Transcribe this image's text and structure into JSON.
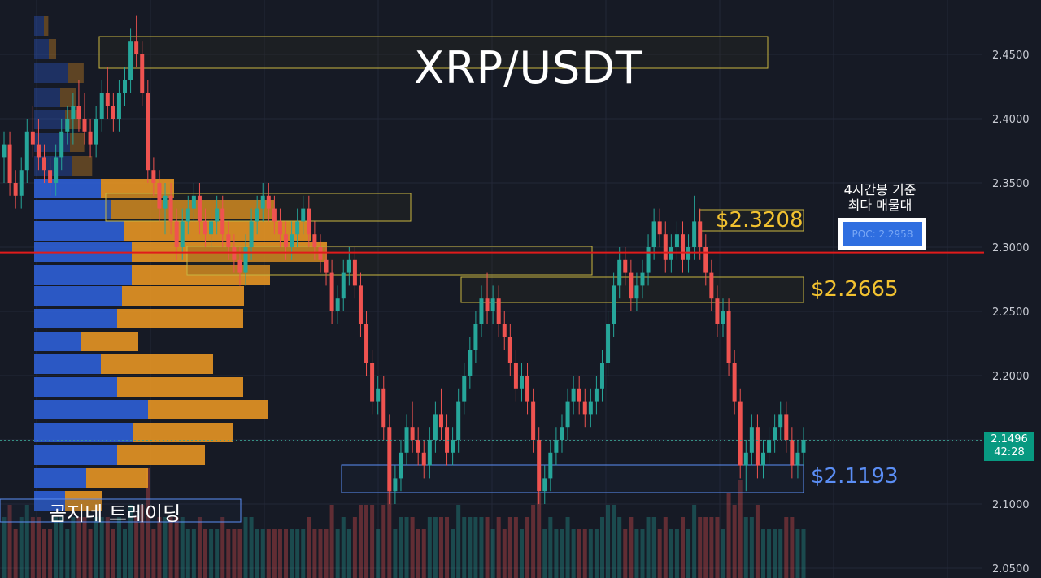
{
  "title": "XRP/USDT",
  "brand": "곰지네 트레이딩",
  "levels": {
    "top": "$2.3208",
    "mid": "$2.2665",
    "support": "$2.1193"
  },
  "poc_note_line1": "4시간봉 기준",
  "poc_note_line2": "최다 매물대",
  "poc_label": "POC: 2.2958",
  "last_price": "2.1496",
  "countdown": "42:28",
  "colors": {
    "background": "#161a25",
    "grid": "#232838",
    "up": "#26a69a",
    "down": "#ef5350",
    "vp_buy": "#2e5fd6",
    "vp_sell": "#e69523",
    "poc_line": "#e01b1b",
    "level_gold": "#f2c230",
    "level_blue": "#5b8ef5"
  },
  "chart_data": {
    "type": "candlestick",
    "title": "XRP/USDT",
    "ylim": [
      2.04,
      2.48
    ],
    "y_ticks": [
      "2.4500",
      "2.4000",
      "2.3500",
      "2.3000",
      "2.2500",
      "2.2000",
      "2.1500",
      "2.1000",
      "2.0500"
    ],
    "grid": true,
    "poc": 2.2958,
    "current_price": 2.1496,
    "horizontal_levels": [
      2.3208,
      2.2665,
      2.1193
    ],
    "ohlc": [
      [
        2.37,
        2.39,
        2.35,
        2.38
      ],
      [
        2.38,
        2.39,
        2.34,
        2.35
      ],
      [
        2.35,
        2.36,
        2.33,
        2.34
      ],
      [
        2.34,
        2.37,
        2.33,
        2.36
      ],
      [
        2.36,
        2.4,
        2.35,
        2.39
      ],
      [
        2.39,
        2.41,
        2.37,
        2.38
      ],
      [
        2.38,
        2.4,
        2.36,
        2.37
      ],
      [
        2.37,
        2.38,
        2.35,
        2.36
      ],
      [
        2.36,
        2.37,
        2.34,
        2.35
      ],
      [
        2.35,
        2.38,
        2.34,
        2.37
      ],
      [
        2.37,
        2.4,
        2.36,
        2.39
      ],
      [
        2.39,
        2.41,
        2.38,
        2.4
      ],
      [
        2.4,
        2.42,
        2.38,
        2.41
      ],
      [
        2.41,
        2.43,
        2.39,
        2.4
      ],
      [
        2.4,
        2.42,
        2.38,
        2.39
      ],
      [
        2.39,
        2.4,
        2.37,
        2.38
      ],
      [
        2.38,
        2.41,
        2.37,
        2.4
      ],
      [
        2.4,
        2.43,
        2.39,
        2.42
      ],
      [
        2.42,
        2.44,
        2.4,
        2.41
      ],
      [
        2.41,
        2.42,
        2.39,
        2.4
      ],
      [
        2.4,
        2.43,
        2.39,
        2.42
      ],
      [
        2.42,
        2.44,
        2.41,
        2.43
      ],
      [
        2.43,
        2.47,
        2.42,
        2.46
      ],
      [
        2.46,
        2.48,
        2.44,
        2.45
      ],
      [
        2.45,
        2.46,
        2.41,
        2.42
      ],
      [
        2.42,
        2.43,
        2.35,
        2.36
      ],
      [
        2.36,
        2.37,
        2.34,
        2.35
      ],
      [
        2.35,
        2.36,
        2.32,
        2.33
      ],
      [
        2.33,
        2.35,
        2.31,
        2.34
      ],
      [
        2.34,
        2.35,
        2.31,
        2.32
      ],
      [
        2.32,
        2.33,
        2.29,
        2.3
      ],
      [
        2.3,
        2.33,
        2.29,
        2.32
      ],
      [
        2.32,
        2.34,
        2.31,
        2.33
      ],
      [
        2.33,
        2.35,
        2.32,
        2.34
      ],
      [
        2.34,
        2.35,
        2.31,
        2.32
      ],
      [
        2.32,
        2.33,
        2.3,
        2.31
      ],
      [
        2.31,
        2.33,
        2.3,
        2.32
      ],
      [
        2.32,
        2.34,
        2.31,
        2.33
      ],
      [
        2.33,
        2.34,
        2.3,
        2.31
      ],
      [
        2.31,
        2.32,
        2.29,
        2.3
      ],
      [
        2.3,
        2.31,
        2.28,
        2.29
      ],
      [
        2.29,
        2.3,
        2.27,
        2.28
      ],
      [
        2.28,
        2.31,
        2.27,
        2.3
      ],
      [
        2.3,
        2.33,
        2.29,
        2.32
      ],
      [
        2.32,
        2.34,
        2.31,
        2.33
      ],
      [
        2.33,
        2.35,
        2.32,
        2.34
      ],
      [
        2.34,
        2.35,
        2.32,
        2.33
      ],
      [
        2.33,
        2.34,
        2.31,
        2.32
      ],
      [
        2.32,
        2.33,
        2.3,
        2.31
      ],
      [
        2.31,
        2.32,
        2.29,
        2.3
      ],
      [
        2.3,
        2.32,
        2.29,
        2.31
      ],
      [
        2.31,
        2.33,
        2.3,
        2.32
      ],
      [
        2.32,
        2.34,
        2.31,
        2.33
      ],
      [
        2.33,
        2.34,
        2.3,
        2.31
      ],
      [
        2.31,
        2.32,
        2.29,
        2.3
      ],
      [
        2.3,
        2.31,
        2.28,
        2.29
      ],
      [
        2.29,
        2.3,
        2.27,
        2.28
      ],
      [
        2.28,
        2.29,
        2.24,
        2.25
      ],
      [
        2.25,
        2.27,
        2.24,
        2.26
      ],
      [
        2.26,
        2.29,
        2.25,
        2.28
      ],
      [
        2.28,
        2.3,
        2.27,
        2.29
      ],
      [
        2.29,
        2.3,
        2.26,
        2.27
      ],
      [
        2.27,
        2.28,
        2.23,
        2.24
      ],
      [
        2.24,
        2.25,
        2.2,
        2.21
      ],
      [
        2.21,
        2.22,
        2.17,
        2.18
      ],
      [
        2.18,
        2.2,
        2.17,
        2.19
      ],
      [
        2.19,
        2.2,
        2.15,
        2.16
      ],
      [
        2.16,
        2.17,
        2.1,
        2.11
      ],
      [
        2.11,
        2.13,
        2.1,
        2.12
      ],
      [
        2.12,
        2.15,
        2.11,
        2.14
      ],
      [
        2.14,
        2.17,
        2.13,
        2.16
      ],
      [
        2.16,
        2.18,
        2.14,
        2.15
      ],
      [
        2.15,
        2.16,
        2.13,
        2.14
      ],
      [
        2.14,
        2.15,
        2.12,
        2.13
      ],
      [
        2.13,
        2.16,
        2.12,
        2.15
      ],
      [
        2.15,
        2.18,
        2.14,
        2.17
      ],
      [
        2.17,
        2.19,
        2.15,
        2.16
      ],
      [
        2.16,
        2.17,
        2.13,
        2.14
      ],
      [
        2.14,
        2.16,
        2.13,
        2.15
      ],
      [
        2.15,
        2.19,
        2.14,
        2.18
      ],
      [
        2.18,
        2.21,
        2.17,
        2.2
      ],
      [
        2.2,
        2.23,
        2.19,
        2.22
      ],
      [
        2.22,
        2.25,
        2.21,
        2.24
      ],
      [
        2.24,
        2.27,
        2.23,
        2.26
      ],
      [
        2.26,
        2.28,
        2.24,
        2.25
      ],
      [
        2.25,
        2.27,
        2.24,
        2.26
      ],
      [
        2.26,
        2.27,
        2.23,
        2.24
      ],
      [
        2.24,
        2.25,
        2.22,
        2.23
      ],
      [
        2.23,
        2.24,
        2.2,
        2.21
      ],
      [
        2.21,
        2.22,
        2.18,
        2.19
      ],
      [
        2.19,
        2.21,
        2.18,
        2.2
      ],
      [
        2.2,
        2.21,
        2.17,
        2.18
      ],
      [
        2.18,
        2.19,
        2.14,
        2.15
      ],
      [
        2.15,
        2.16,
        2.1,
        2.11
      ],
      [
        2.11,
        2.13,
        2.1,
        2.12
      ],
      [
        2.12,
        2.15,
        2.11,
        2.14
      ],
      [
        2.14,
        2.16,
        2.13,
        2.15
      ],
      [
        2.15,
        2.17,
        2.14,
        2.16
      ],
      [
        2.16,
        2.19,
        2.15,
        2.18
      ],
      [
        2.18,
        2.2,
        2.17,
        2.19
      ],
      [
        2.19,
        2.2,
        2.17,
        2.18
      ],
      [
        2.18,
        2.19,
        2.16,
        2.17
      ],
      [
        2.17,
        2.19,
        2.16,
        2.18
      ],
      [
        2.18,
        2.2,
        2.17,
        2.19
      ],
      [
        2.19,
        2.22,
        2.18,
        2.21
      ],
      [
        2.21,
        2.25,
        2.2,
        2.24
      ],
      [
        2.24,
        2.28,
        2.23,
        2.27
      ],
      [
        2.27,
        2.3,
        2.26,
        2.29
      ],
      [
        2.29,
        2.3,
        2.27,
        2.28
      ],
      [
        2.28,
        2.29,
        2.25,
        2.26
      ],
      [
        2.26,
        2.28,
        2.25,
        2.27
      ],
      [
        2.27,
        2.29,
        2.26,
        2.28
      ],
      [
        2.28,
        2.31,
        2.27,
        2.3
      ],
      [
        2.3,
        2.33,
        2.29,
        2.32
      ],
      [
        2.32,
        2.33,
        2.3,
        2.31
      ],
      [
        2.31,
        2.32,
        2.28,
        2.29
      ],
      [
        2.29,
        2.31,
        2.28,
        2.3
      ],
      [
        2.3,
        2.32,
        2.29,
        2.31
      ],
      [
        2.31,
        2.32,
        2.28,
        2.29
      ],
      [
        2.29,
        2.31,
        2.28,
        2.3
      ],
      [
        2.3,
        2.34,
        2.29,
        2.32
      ],
      [
        2.32,
        2.33,
        2.29,
        2.3
      ],
      [
        2.3,
        2.31,
        2.27,
        2.28
      ],
      [
        2.28,
        2.29,
        2.25,
        2.26
      ],
      [
        2.26,
        2.27,
        2.23,
        2.24
      ],
      [
        2.24,
        2.26,
        2.23,
        2.25
      ],
      [
        2.25,
        2.26,
        2.2,
        2.21
      ],
      [
        2.21,
        2.22,
        2.17,
        2.18
      ],
      [
        2.18,
        2.19,
        2.12,
        2.13
      ],
      [
        2.13,
        2.15,
        2.11,
        2.14
      ],
      [
        2.14,
        2.17,
        2.13,
        2.16
      ],
      [
        2.16,
        2.17,
        2.12,
        2.13
      ],
      [
        2.13,
        2.15,
        2.12,
        2.14
      ],
      [
        2.14,
        2.16,
        2.13,
        2.15
      ],
      [
        2.15,
        2.17,
        2.14,
        2.16
      ],
      [
        2.16,
        2.18,
        2.15,
        2.17
      ],
      [
        2.17,
        2.18,
        2.14,
        2.15
      ],
      [
        2.15,
        2.16,
        2.12,
        2.13
      ],
      [
        2.13,
        2.15,
        2.12,
        2.14
      ],
      [
        2.14,
        2.16,
        2.13,
        2.15
      ]
    ]
  }
}
